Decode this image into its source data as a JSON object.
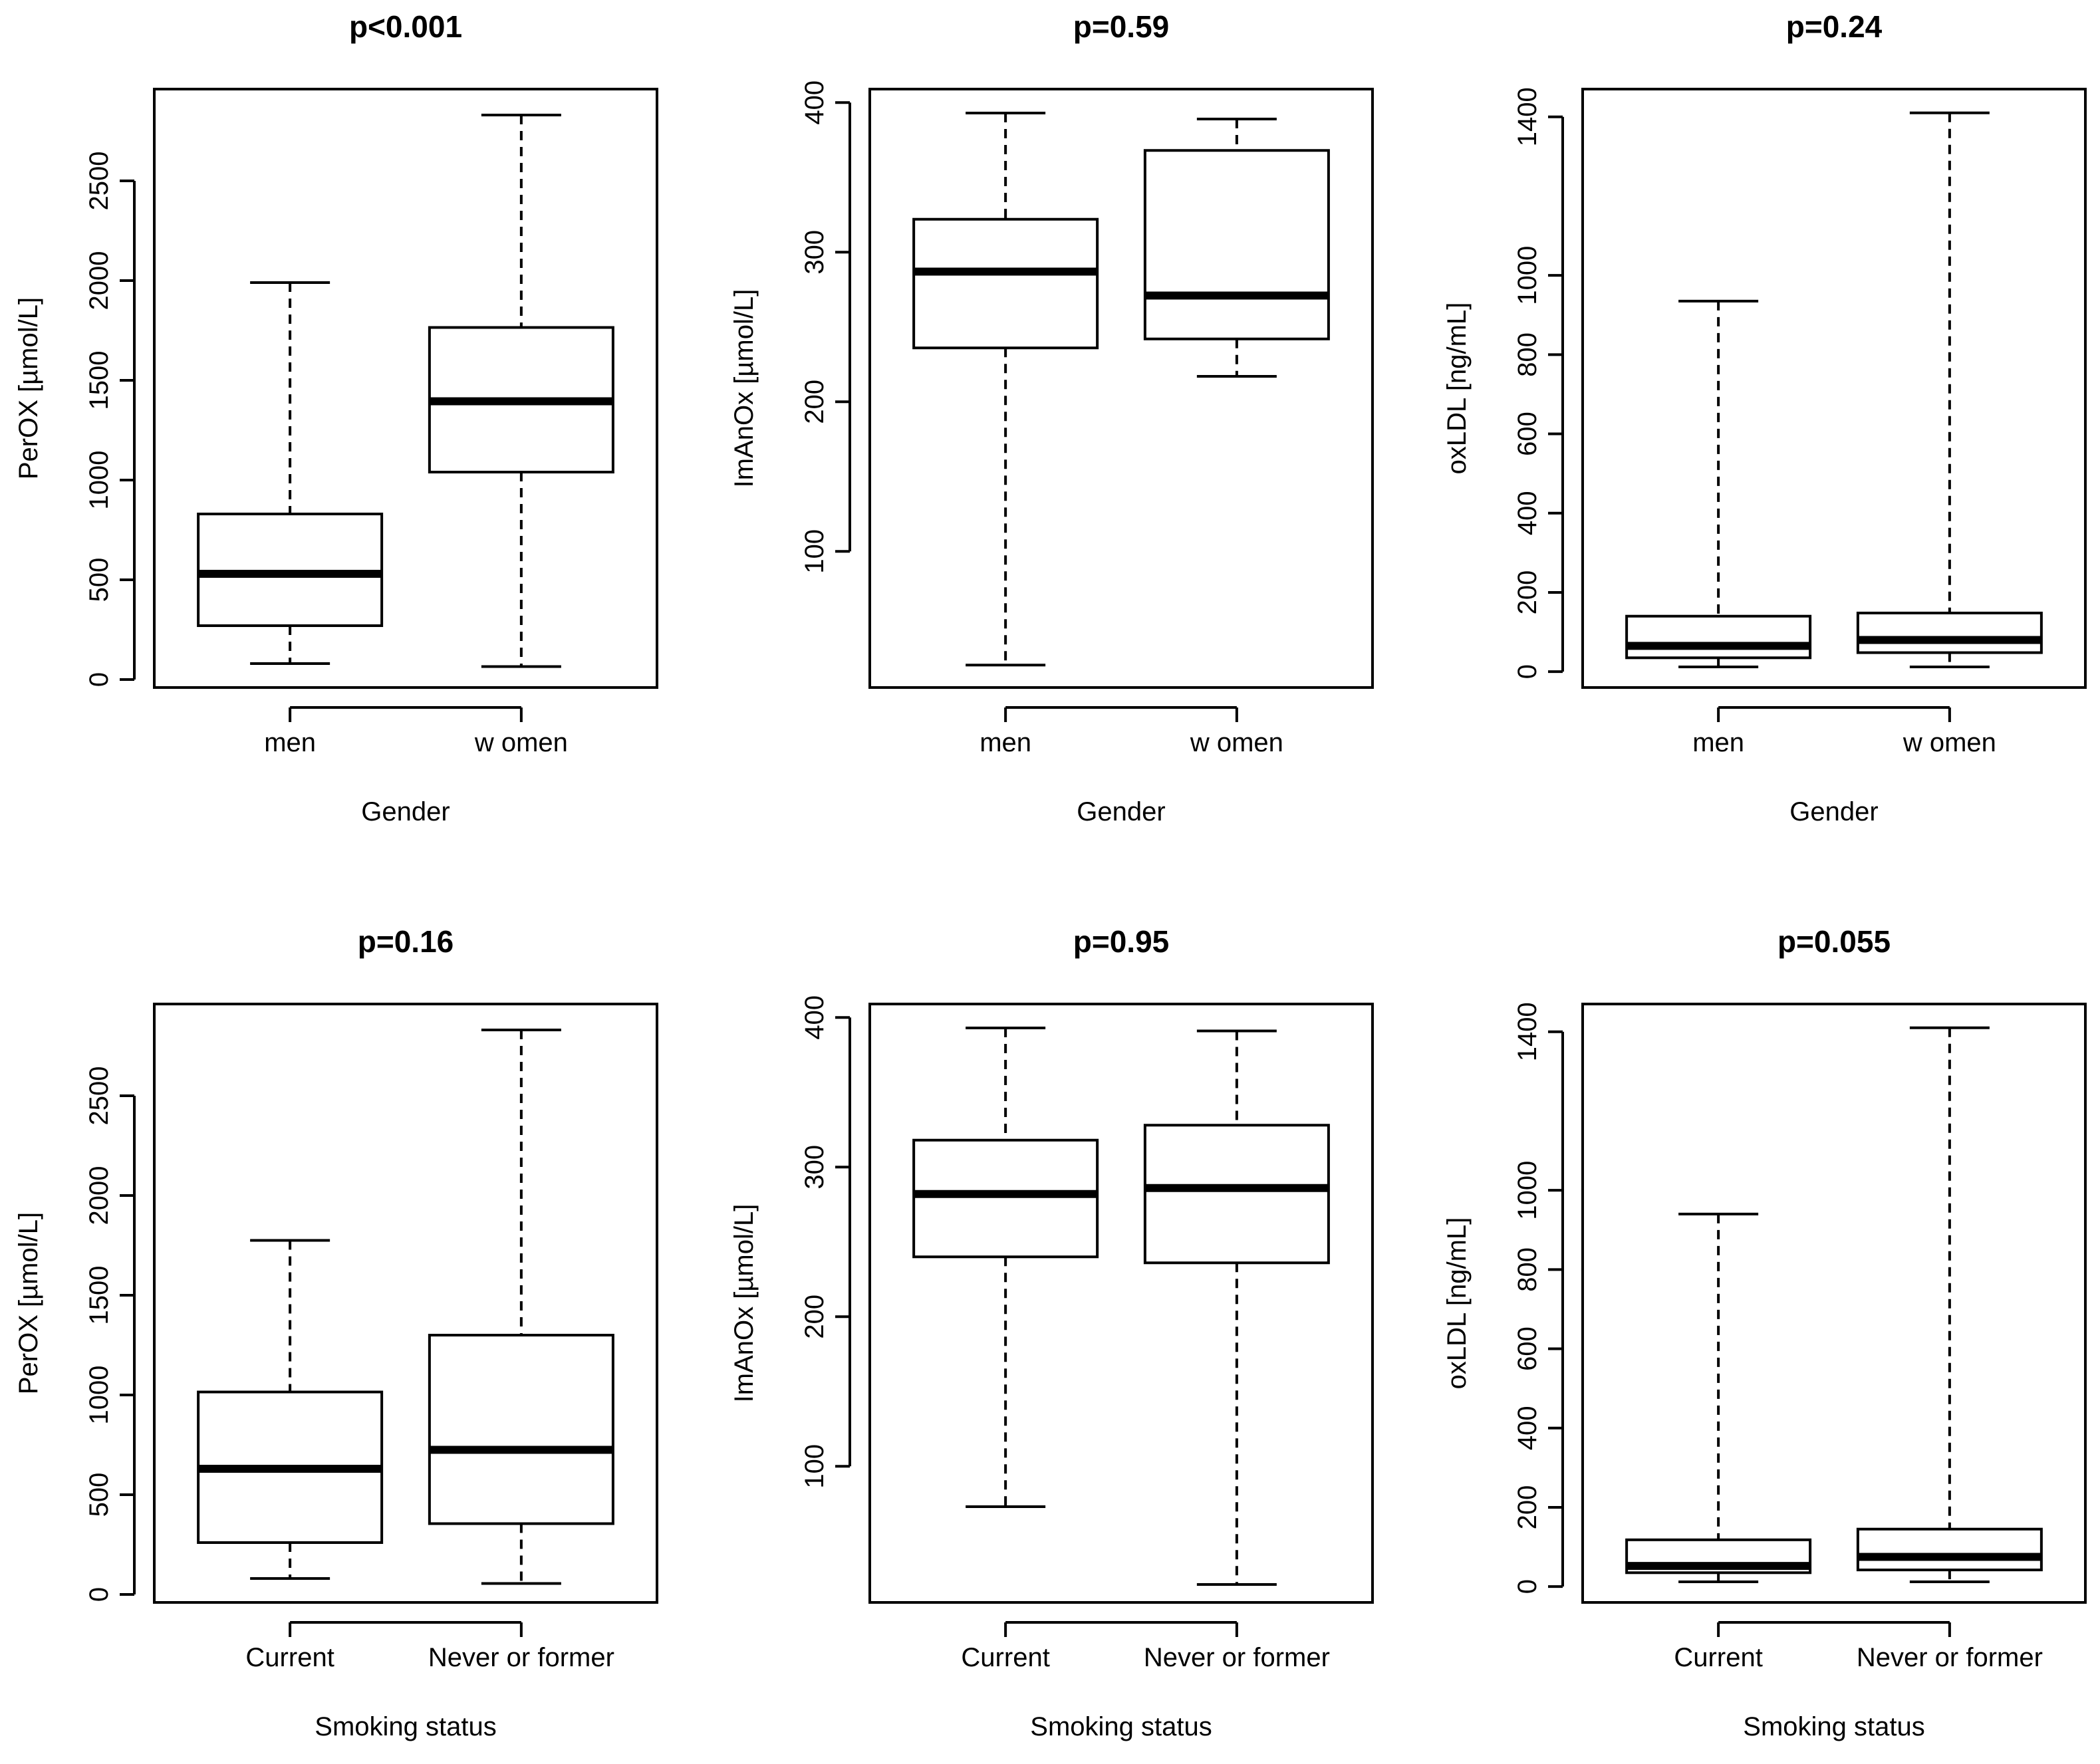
{
  "figure": {
    "background": "#ffffff",
    "ink": "#000000"
  },
  "chart_data": [
    {
      "type": "boxplot",
      "title": "p<0.001",
      "xlabel": "Gender",
      "ylabel": "PerOX [µmol/L]",
      "categories": [
        "men",
        "w omen"
      ],
      "ylim": [
        -40,
        2960
      ],
      "yticks": [
        0,
        500,
        1000,
        1500,
        2000,
        2500
      ],
      "tick_labels": [
        "0",
        "500",
        "1000",
        "1500",
        "2000",
        "2500"
      ],
      "boxes": [
        {
          "category": "men",
          "min": 80,
          "q1": 270,
          "median": 530,
          "q3": 830,
          "max": 1990
        },
        {
          "category": "w omen",
          "min": 65,
          "q1": 1040,
          "median": 1395,
          "q3": 1765,
          "max": 2830
        }
      ]
    },
    {
      "type": "boxplot",
      "title": "p=0.59",
      "xlabel": "Gender",
      "ylabel": "ImAnOx [µmol/L]",
      "categories": [
        "men",
        "w omen"
      ],
      "ylim": [
        9,
        409
      ],
      "yticks": [
        100,
        200,
        300,
        400
      ],
      "tick_labels": [
        "100",
        "200",
        "300",
        "400"
      ],
      "boxes": [
        {
          "category": "men",
          "min": 24,
          "q1": 236,
          "median": 287,
          "q3": 322,
          "max": 393
        },
        {
          "category": "w omen",
          "min": 217,
          "q1": 242,
          "median": 271,
          "q3": 368,
          "max": 389
        }
      ]
    },
    {
      "type": "boxplot",
      "title": "p=0.24",
      "xlabel": "Gender",
      "ylabel": "oxLDL [ng/mL]",
      "categories": [
        "men",
        "w omen"
      ],
      "ylim": [
        -40,
        1470
      ],
      "yticks": [
        0,
        200,
        400,
        600,
        800,
        1000,
        1400
      ],
      "tick_labels": [
        "0",
        "200",
        "400",
        "600",
        "800",
        "1000",
        "1400"
      ],
      "boxes": [
        {
          "category": "men",
          "min": 12,
          "q1": 35,
          "median": 65,
          "q3": 140,
          "max": 935
        },
        {
          "category": "w omen",
          "min": 12,
          "q1": 48,
          "median": 80,
          "q3": 148,
          "max": 1410
        }
      ]
    },
    {
      "type": "boxplot",
      "title": "p=0.16",
      "xlabel": "Smoking status",
      "ylabel": "PerOX [µmol/L]",
      "categories": [
        "Current",
        "Never or former"
      ],
      "ylim": [
        -40,
        2960
      ],
      "yticks": [
        0,
        500,
        1000,
        1500,
        2000,
        2500
      ],
      "tick_labels": [
        "0",
        "500",
        "1000",
        "1500",
        "2000",
        "2500"
      ],
      "boxes": [
        {
          "category": "Current",
          "min": 80,
          "q1": 260,
          "median": 630,
          "q3": 1015,
          "max": 1775
        },
        {
          "category": "Never or former",
          "min": 55,
          "q1": 355,
          "median": 725,
          "q3": 1300,
          "max": 2830
        }
      ]
    },
    {
      "type": "boxplot",
      "title": "p=0.95",
      "xlabel": "Smoking status",
      "ylabel": "ImAnOx [µmol/L]",
      "categories": [
        "Current",
        "Never or former"
      ],
      "ylim": [
        9,
        409
      ],
      "yticks": [
        100,
        200,
        300,
        400
      ],
      "tick_labels": [
        "100",
        "200",
        "300",
        "400"
      ],
      "boxes": [
        {
          "category": "Current",
          "min": 73,
          "q1": 240,
          "median": 282,
          "q3": 318,
          "max": 393
        },
        {
          "category": "Never or former",
          "min": 21,
          "q1": 236,
          "median": 286,
          "q3": 328,
          "max": 391
        }
      ]
    },
    {
      "type": "boxplot",
      "title": "p=0.055",
      "xlabel": "Smoking status",
      "ylabel": "oxLDL [ng/mL]",
      "categories": [
        "Current",
        "Never or former"
      ],
      "ylim": [
        -40,
        1470
      ],
      "yticks": [
        0,
        200,
        400,
        600,
        800,
        1000,
        1400
      ],
      "tick_labels": [
        "0",
        "200",
        "400",
        "600",
        "800",
        "1000",
        "1400"
      ],
      "boxes": [
        {
          "category": "Current",
          "min": 12,
          "q1": 35,
          "median": 52,
          "q3": 118,
          "max": 940
        },
        {
          "category": "Never or former",
          "min": 12,
          "q1": 42,
          "median": 75,
          "q3": 145,
          "max": 1410
        }
      ]
    }
  ]
}
